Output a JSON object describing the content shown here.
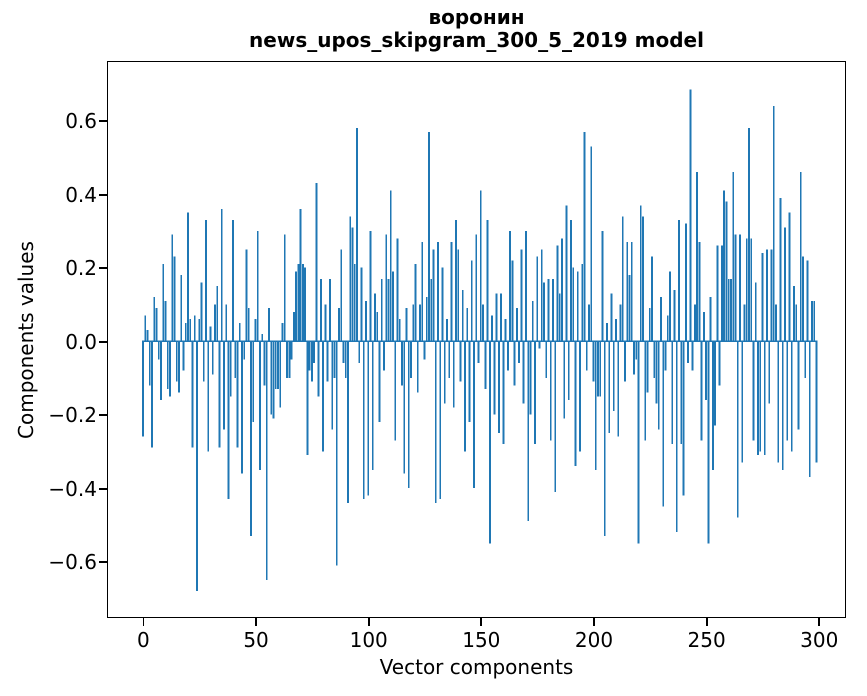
{
  "chart_data": {
    "type": "bar",
    "title_lines": [
      "воронин",
      "news_upos_skipgram_300_5_2019 model"
    ],
    "xlabel": "Vector components",
    "ylabel": "Components values",
    "bar_color": "#1f77b4",
    "n_components": 300,
    "xlim": [
      -15.5,
      311.2
    ],
    "ylim": [
      -0.748,
      0.76
    ],
    "x_tick_values": [
      0,
      50,
      100,
      150,
      200,
      250,
      300
    ],
    "x_tick_labels": [
      "0",
      "50",
      "100",
      "150",
      "200",
      "250",
      "300"
    ],
    "y_tick_values": [
      0.6,
      0.4,
      0.2,
      0.0,
      -0.2,
      -0.4,
      -0.6
    ],
    "y_tick_labels": [
      "0.6",
      "0.4",
      "0.2",
      "0.0",
      "−0.2",
      "−0.4",
      "−0.6"
    ],
    "grid": false,
    "legend": false,
    "values": [
      -0.26,
      0.07,
      0.03,
      -0.12,
      -0.29,
      0.12,
      0.09,
      -0.05,
      -0.16,
      0.21,
      0.11,
      -0.13,
      -0.15,
      0.29,
      0.23,
      -0.11,
      -0.14,
      0.18,
      -0.08,
      0.05,
      0.35,
      0.06,
      -0.29,
      0.07,
      -0.68,
      0.06,
      0.16,
      -0.11,
      0.33,
      -0.3,
      0.04,
      -0.09,
      0.1,
      0.15,
      -0.29,
      0.36,
      -0.24,
      0.1,
      -0.43,
      -0.15,
      0.33,
      -0.1,
      -0.29,
      0.05,
      -0.36,
      -0.05,
      0.25,
      0.09,
      -0.53,
      -0.22,
      0.06,
      0.3,
      -0.35,
      0.02,
      -0.12,
      -0.65,
      0.09,
      -0.2,
      -0.21,
      -0.13,
      -0.13,
      -0.18,
      0.05,
      0.29,
      -0.1,
      -0.1,
      -0.05,
      0.08,
      0.19,
      0.21,
      0.36,
      0.21,
      0.2,
      -0.31,
      -0.08,
      -0.11,
      -0.06,
      0.43,
      -0.15,
      0.17,
      -0.3,
      0.1,
      -0.11,
      0.17,
      -0.24,
      -0.1,
      -0.61,
      0.09,
      0.25,
      -0.06,
      -0.1,
      -0.44,
      0.34,
      0.31,
      0.21,
      0.58,
      -0.06,
      0.2,
      -0.43,
      0.11,
      -0.42,
      0.3,
      -0.35,
      0.13,
      0.08,
      -0.22,
      0.17,
      -0.08,
      0.29,
      0.17,
      0.41,
      0.19,
      -0.27,
      0.28,
      0.06,
      -0.12,
      -0.36,
      0.09,
      -0.4,
      -0.1,
      0.1,
      0.21,
      -0.14,
      0.1,
      0.27,
      -0.05,
      0.12,
      0.57,
      0.17,
      0.25,
      -0.44,
      0.27,
      -0.43,
      0.2,
      -0.17,
      0.06,
      -0.1,
      0.27,
      -0.18,
      0.33,
      0.25,
      -0.11,
      0.14,
      -0.3,
      0.09,
      -0.22,
      0.22,
      -0.4,
      0.29,
      -0.06,
      0.41,
      0.1,
      -0.13,
      0.33,
      -0.55,
      0.07,
      -0.2,
      0.13,
      -0.25,
      0.13,
      -0.28,
      0.06,
      -0.08,
      0.3,
      0.22,
      -0.12,
      0.09,
      -0.06,
      0.25,
      -0.17,
      0.3,
      -0.49,
      -0.2,
      0.11,
      -0.28,
      0.23,
      -0.02,
      0.25,
      0.16,
      -0.1,
      0.17,
      -0.27,
      0.17,
      -0.41,
      0.26,
      0.13,
      0.28,
      -0.21,
      0.37,
      -0.16,
      0.33,
      0.2,
      -0.34,
      0.19,
      -0.3,
      0.21,
      0.57,
      -0.08,
      0.1,
      0.53,
      -0.11,
      -0.35,
      -0.15,
      -0.15,
      0.3,
      -0.53,
      0.05,
      -0.25,
      0.13,
      -0.19,
      0.06,
      -0.26,
      0.1,
      0.34,
      -0.11,
      0.27,
      0.18,
      0.27,
      -0.09,
      -0.05,
      -0.55,
      0.37,
      0.34,
      -0.27,
      -0.14,
      0.09,
      0.23,
      -0.1,
      -0.17,
      -0.24,
      0.12,
      -0.45,
      -0.08,
      0.07,
      0.19,
      -0.28,
      0.14,
      -0.52,
      0.33,
      -0.28,
      -0.42,
      0.32,
      -0.06,
      0.685,
      -0.08,
      0.1,
      0.46,
      0.27,
      -0.27,
      0.08,
      -0.16,
      -0.55,
      0.12,
      -0.35,
      -0.23,
      0.26,
      -0.12,
      0.26,
      0.41,
      0.38,
      0.17,
      0.17,
      0.46,
      0.29,
      -0.48,
      0.29,
      -0.33,
      0.1,
      0.28,
      0.58,
      0.28,
      -0.27,
      0.16,
      -0.31,
      -0.3,
      0.24,
      -0.31,
      0.25,
      -0.17,
      0.25,
      0.64,
      0.1,
      -0.33,
      0.39,
      -0.35,
      0.31,
      -0.27,
      0.35,
      -0.3,
      0.15,
      0.1,
      -0.24,
      0.46,
      0.23,
      -0.1,
      0.22,
      -0.37,
      0.11,
      0.11,
      -0.33
    ]
  }
}
